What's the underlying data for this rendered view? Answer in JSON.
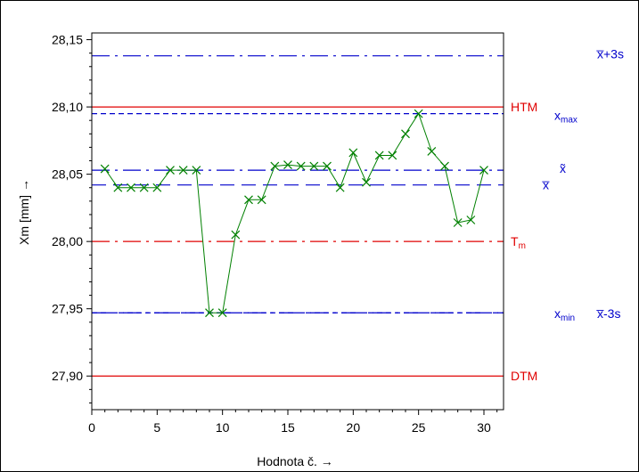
{
  "chart_data": {
    "type": "line",
    "title": "",
    "xlabel": "Hodnota č. →",
    "ylabel": "Xm [mm] →",
    "xlim": [
      0,
      31.5
    ],
    "ylim": [
      27.875,
      28.155
    ],
    "x_ticks": [
      0,
      5,
      10,
      15,
      20,
      25,
      30
    ],
    "x_tick_labels": [
      "0",
      "5",
      "10",
      "15",
      "20",
      "25",
      "30"
    ],
    "y_ticks": [
      27.9,
      27.95,
      28.0,
      28.05,
      28.1,
      28.15
    ],
    "y_tick_labels": [
      "27,90",
      "27,95",
      "28,00",
      "28,05",
      "28,10",
      "28,15"
    ],
    "grid": false,
    "series": [
      {
        "color": "#008000",
        "marker": "x",
        "x": [
          1,
          2,
          3,
          4,
          5,
          6,
          7,
          8,
          9,
          10,
          11,
          12,
          13,
          14,
          15,
          16,
          17,
          18,
          19,
          20,
          21,
          22,
          23,
          24,
          25,
          26,
          27,
          28,
          29,
          30
        ],
        "values": [
          28.054,
          28.04,
          28.04,
          28.04,
          28.04,
          28.053,
          28.053,
          28.053,
          27.947,
          27.947,
          28.005,
          28.031,
          28.031,
          28.056,
          28.057,
          28.056,
          28.056,
          28.056,
          28.04,
          28.066,
          28.044,
          28.064,
          28.064,
          28.08,
          28.095,
          28.067,
          28.056,
          28.014,
          28.016,
          28.053
        ]
      }
    ],
    "reference_lines": [
      {
        "y": 28.138,
        "color": "#0000cc",
        "style": "dashdot",
        "label_main": "x̅+3s",
        "label_sub": "",
        "column": "right"
      },
      {
        "y": 28.1,
        "color": "#e00000",
        "style": "solid",
        "label_main": "HTM",
        "label_sub": "",
        "column": "left"
      },
      {
        "y": 28.095,
        "color": "#0000cc",
        "style": "dash",
        "label_main": "x",
        "label_sub": "max",
        "column": "mid"
      },
      {
        "y": 28.053,
        "color": "#0000cc",
        "style": "dashdot",
        "label_main": "x̃",
        "label_sub": "",
        "column": "tilde"
      },
      {
        "y": 28.042,
        "color": "#0000cc",
        "style": "longdash",
        "label_main": "x̅",
        "label_sub": "",
        "column": "xbar"
      },
      {
        "y": 28.0,
        "color": "#e00000",
        "style": "dashdot",
        "label_main": "T",
        "label_sub": "m",
        "column": "left"
      },
      {
        "y": 27.947,
        "color": "#0000cc",
        "style": "dash",
        "label_main": "x",
        "label_sub": "min",
        "column": "mid"
      },
      {
        "y": 27.947,
        "color": "#0000cc",
        "style": "dashdot",
        "label_main": "x̅-3s",
        "label_sub": "",
        "column": "right"
      },
      {
        "y": 27.9,
        "color": "#e00000",
        "style": "solid",
        "label_main": "DTM",
        "label_sub": "",
        "column": "left"
      }
    ]
  }
}
